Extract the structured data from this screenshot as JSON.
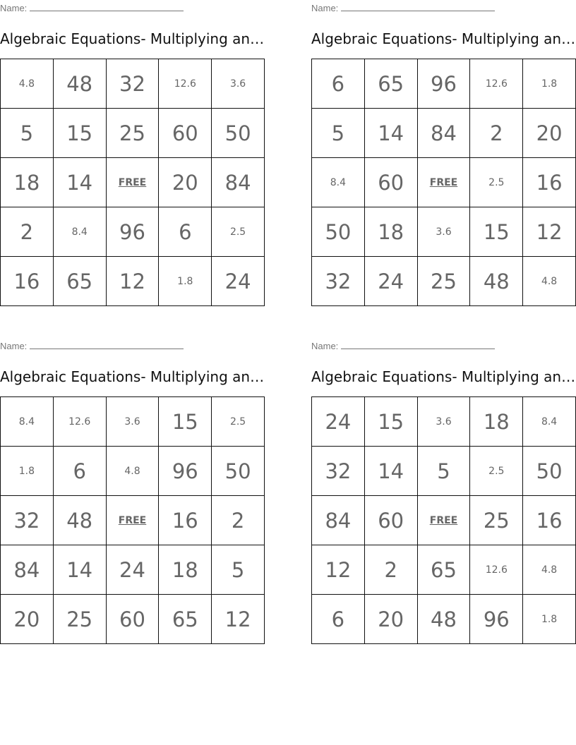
{
  "name_label": "Name:",
  "cards": [
    {
      "title": "Algebraic Equations- Multiplying an…",
      "rows": [
        [
          "4.8",
          "48",
          "32",
          "12.6",
          "3.6"
        ],
        [
          "5",
          "15",
          "25",
          "60",
          "50"
        ],
        [
          "18",
          "14",
          "FREE",
          "20",
          "84"
        ],
        [
          "2",
          "8.4",
          "96",
          "6",
          "2.5"
        ],
        [
          "16",
          "65",
          "12",
          "1.8",
          "24"
        ]
      ]
    },
    {
      "title": "Algebraic Equations- Multiplying an…",
      "rows": [
        [
          "6",
          "65",
          "96",
          "12.6",
          "1.8"
        ],
        [
          "5",
          "14",
          "84",
          "2",
          "20"
        ],
        [
          "8.4",
          "60",
          "FREE",
          "2.5",
          "16"
        ],
        [
          "50",
          "18",
          "3.6",
          "15",
          "12"
        ],
        [
          "32",
          "24",
          "25",
          "48",
          "4.8"
        ]
      ]
    },
    {
      "title": "Algebraic Equations- Multiplying an…",
      "rows": [
        [
          "8.4",
          "12.6",
          "3.6",
          "15",
          "2.5"
        ],
        [
          "1.8",
          "6",
          "4.8",
          "96",
          "50"
        ],
        [
          "32",
          "48",
          "FREE",
          "16",
          "2"
        ],
        [
          "84",
          "14",
          "24",
          "18",
          "5"
        ],
        [
          "20",
          "25",
          "60",
          "65",
          "12"
        ]
      ]
    },
    {
      "title": "Algebraic Equations- Multiplying an…",
      "rows": [
        [
          "24",
          "15",
          "3.6",
          "18",
          "8.4"
        ],
        [
          "32",
          "14",
          "5",
          "2.5",
          "50"
        ],
        [
          "84",
          "60",
          "FREE",
          "25",
          "16"
        ],
        [
          "12",
          "2",
          "65",
          "12.6",
          "4.8"
        ],
        [
          "6",
          "20",
          "48",
          "96",
          "1.8"
        ]
      ]
    }
  ]
}
